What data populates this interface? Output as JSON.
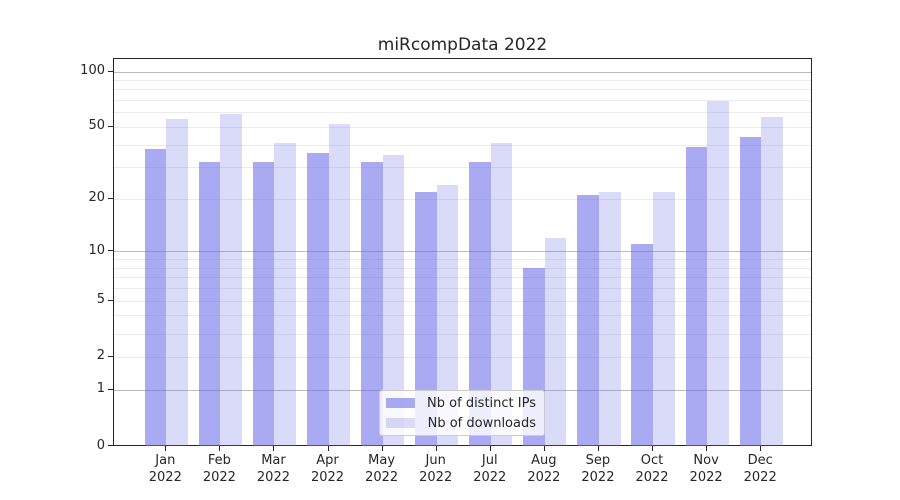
{
  "title": "miRcompData 2022",
  "chart_data": {
    "type": "bar",
    "title": "miRcompData 2022",
    "xlabel": "",
    "ylabel": "",
    "yscale": "log1p",
    "ylim": [
      0,
      117
    ],
    "grid": true,
    "legend_position": "lower center",
    "categories": [
      "Jan 2022",
      "Feb 2022",
      "Mar 2022",
      "Apr 2022",
      "May 2022",
      "Jun 2022",
      "Jul 2022",
      "Aug 2022",
      "Sep 2022",
      "Oct 2022",
      "Nov 2022",
      "Dec 2022"
    ],
    "series": [
      {
        "name": "Nb of distinct IPs",
        "color": "rgba(106,106,233,0.57)",
        "values": [
          38,
          32,
          32,
          36,
          32,
          22,
          32,
          8,
          21,
          11,
          39,
          44
        ]
      },
      {
        "name": "Nb of downloads",
        "color": "rgba(106,106,233,0.25)",
        "values": [
          55,
          59,
          41,
          52,
          35,
          24,
          41,
          12,
          22,
          22,
          69,
          57
        ]
      }
    ],
    "yticks": [
      0,
      1,
      2,
      5,
      10,
      20,
      50,
      100
    ],
    "major_gridlines": [
      1,
      10,
      100
    ],
    "minor_gridlines": [
      2,
      3,
      4,
      5,
      6,
      7,
      8,
      9,
      20,
      30,
      40,
      50,
      60,
      70,
      80,
      90
    ],
    "colors": {
      "axis": "#262626",
      "major_grid": "#bcbcbc",
      "minor_grid": "#ebebeb",
      "text": "#262626"
    }
  },
  "legend": {
    "items": [
      {
        "label": "Nb of distinct IPs"
      },
      {
        "label": "Nb of downloads"
      }
    ]
  }
}
